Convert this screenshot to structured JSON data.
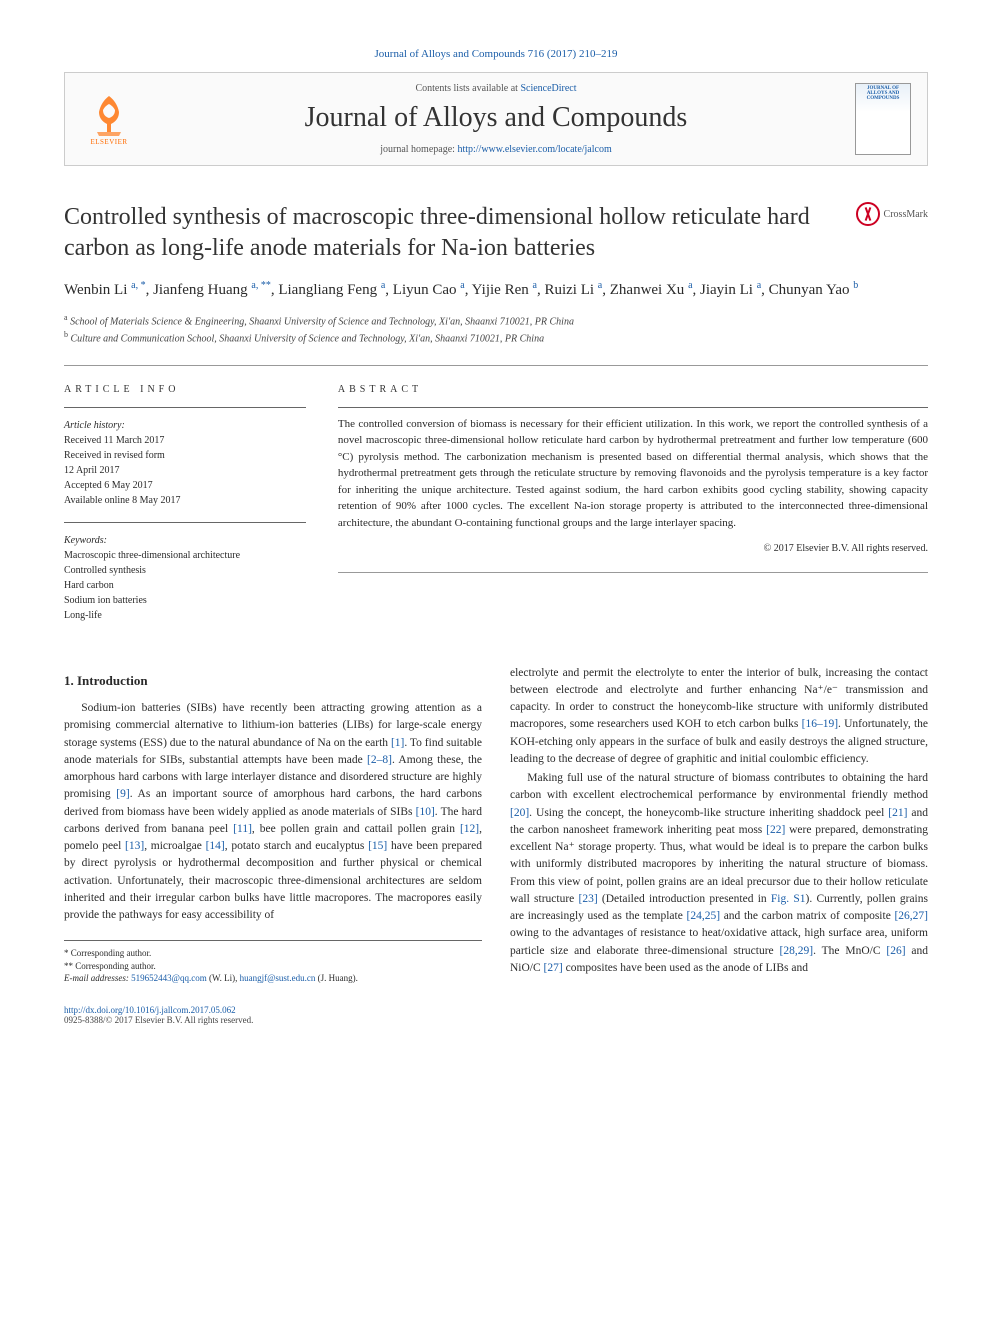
{
  "header": {
    "top_line": "Journal of Alloys and Compounds 716 (2017) 210–219",
    "contents_text": "Contents lists available at ",
    "contents_link": "ScienceDirect",
    "journal_name": "Journal of Alloys and Compounds",
    "homepage_prefix": "journal homepage: ",
    "homepage_url": "http://www.elsevier.com/locate/jalcom",
    "elsevier_label": "ELSEVIER",
    "cover_label": "JOURNAL OF ALLOYS AND COMPOUNDS"
  },
  "crossmark_label": "CrossMark",
  "title": "Controlled synthesis of macroscopic three-dimensional hollow reticulate hard carbon as long-life anode materials for Na-ion batteries",
  "authors_html": "Wenbin Li <sup>a, *</sup>, Jianfeng Huang <sup>a, **</sup>, Liangliang Feng <sup>a</sup>, Liyun Cao <sup>a</sup>, Yijie Ren <sup>a</sup>, Ruizi Li <sup>a</sup>, Zhanwei Xu <sup>a</sup>, Jiayin Li <sup>a</sup>, Chunyan Yao <sup>b</sup>",
  "affiliations": [
    "a School of Materials Science & Engineering, Shaanxi University of Science and Technology, Xi'an, Shaanxi 710021, PR China",
    "b Culture and Communication School, Shaanxi University of Science and Technology, Xi'an, Shaanxi 710021, PR China"
  ],
  "article_info": {
    "heading": "ARTICLE INFO",
    "history_label": "Article history:",
    "history": [
      "Received 11 March 2017",
      "Received in revised form",
      "12 April 2017",
      "Accepted 6 May 2017",
      "Available online 8 May 2017"
    ],
    "keywords_label": "Keywords:",
    "keywords": [
      "Macroscopic three-dimensional architecture",
      "Controlled synthesis",
      "Hard carbon",
      "Sodium ion batteries",
      "Long-life"
    ]
  },
  "abstract": {
    "heading": "ABSTRACT",
    "text": "The controlled conversion of biomass is necessary for their efficient utilization. In this work, we report the controlled synthesis of a novel macroscopic three-dimensional hollow reticulate hard carbon by hydrothermal pretreatment and further low temperature (600 °C) pyrolysis method. The carbonization mechanism is presented based on differential thermal analysis, which shows that the hydrothermal pretreatment gets through the reticulate structure by removing flavonoids and the pyrolysis temperature is a key factor for inheriting the unique architecture. Tested against sodium, the hard carbon exhibits good cycling stability, showing capacity retention of 90% after 1000 cycles. The excellent Na-ion storage property is attributed to the interconnected three-dimensional architecture, the abundant O-containing functional groups and the large interlayer spacing.",
    "copyright": "© 2017 Elsevier B.V. All rights reserved."
  },
  "body": {
    "section_heading": "1. Introduction",
    "para1_pre": "Sodium-ion batteries (SIBs) have recently been attracting growing attention as a promising commercial alternative to lithium-ion batteries (LIBs) for large-scale energy storage systems (ESS) due to the natural abundance of Na on the earth ",
    "ref1": "[1]",
    "para1_mid1": ". To find suitable anode materials for SIBs, substantial attempts have been made ",
    "ref2_8": "[2–8]",
    "para1_mid2": ". Among these, the amorphous hard carbons with large interlayer distance and disordered structure are highly promising ",
    "ref9": "[9]",
    "para1_mid3": ". As an important source of amorphous hard carbons, the hard carbons derived from biomass have been widely applied as anode materials of SIBs ",
    "ref10": "[10]",
    "para1_mid4": ". The hard carbons derived from banana peel ",
    "ref11": "[11]",
    "para1_mid5": ", bee pollen grain and cattail pollen grain ",
    "ref12": "[12]",
    "para1_mid6": ", pomelo peel ",
    "ref13": "[13]",
    "para1_mid7": ", microalgae ",
    "ref14": "[14]",
    "para1_mid8": ", potato starch and eucalyptus ",
    "ref15": "[15]",
    "para1_end": " have been prepared by direct pyrolysis or hydrothermal decomposition and further physical or chemical activation. Unfortunately, their macroscopic three-dimensional architectures are seldom inherited and their irregular carbon bulks have little macropores. The macropores easily provide the pathways for easy accessibility of",
    "para2_pre": "electrolyte and permit the electrolyte to enter the interior of bulk, increasing the contact between electrode and electrolyte and further enhancing Na⁺/e⁻ transmission and capacity. In order to construct the honeycomb-like structure with uniformly distributed macropores, some researchers used KOH to etch carbon bulks ",
    "ref16_19": "[16–19]",
    "para2_end": ". Unfortunately, the KOH-etching only appears in the surface of bulk and easily destroys the aligned structure, leading to the decrease of degree of graphitic and initial coulombic efficiency.",
    "para3_pre": "Making full use of the natural structure of biomass contributes to obtaining the hard carbon with excellent electrochemical performance by environmental friendly method ",
    "ref20": "[20]",
    "para3_mid1": ". Using the concept, the honeycomb-like structure inheriting shaddock peel ",
    "ref21": "[21]",
    "para3_mid2": " and the carbon nanosheet framework inheriting peat moss ",
    "ref22": "[22]",
    "para3_mid3": " were prepared, demonstrating excellent Na⁺ storage property. Thus, what would be ideal is to prepare the carbon bulks with uniformly distributed macropores by inheriting the natural structure of biomass. From this view of point, pollen grains are an ideal precursor due to their hollow reticulate wall structure ",
    "ref23": "[23]",
    "para3_mid4": " (Detailed introduction presented in ",
    "figS1": "Fig. S1",
    "para3_mid5": "). Currently, pollen grains are increasingly used as the template ",
    "ref24_25": "[24,25]",
    "para3_mid6": " and the carbon matrix of composite ",
    "ref26_27": "[26,27]",
    "para3_mid7": " owing to the advantages of resistance to heat/oxidative attack, high surface area, uniform particle size and elaborate three-dimensional structure ",
    "ref28_29": "[28,29]",
    "para3_mid8": ". The MnO/C ",
    "ref26": "[26]",
    "para3_mid9": " and NiO/C ",
    "ref27": "[27]",
    "para3_end": " composites have been used as the anode of LIBs and"
  },
  "footnotes": {
    "corr1": "* Corresponding author.",
    "corr2": "** Corresponding author.",
    "email_label": "E-mail addresses: ",
    "email1": "519652443@qq.com",
    "email1_paren": " (W. Li), ",
    "email2": "huangjf@sust.edu.cn",
    "email2_paren": " (J. Huang)."
  },
  "footer": {
    "doi": "http://dx.doi.org/10.1016/j.jallcom.2017.05.062",
    "issn_line": "0925-8388/© 2017 Elsevier B.V. All rights reserved."
  },
  "colors": {
    "link": "#1a5da8",
    "elsevier_orange": "#ff6b00",
    "text": "#2a2a2a",
    "rule": "#999999"
  }
}
